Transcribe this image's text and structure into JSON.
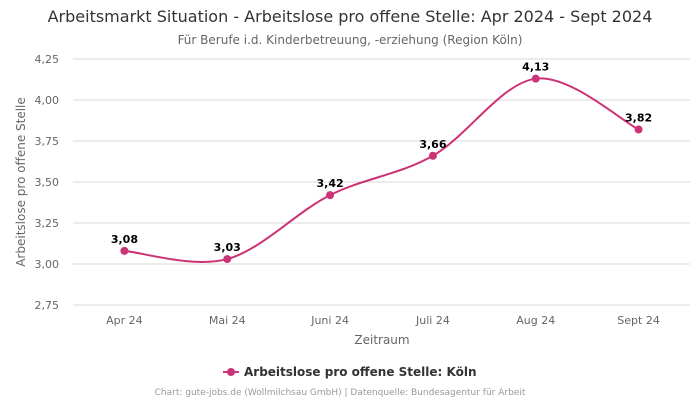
{
  "chart_data": {
    "type": "line",
    "title": "Arbeitsmarkt Situation - Arbeitslose pro offene Stelle: Apr 2024 - Sept 2024",
    "subtitle": "Für Berufe i.d. Kinderbetreuung, -erziehung (Region Köln)",
    "xlabel": "Zeitraum",
    "ylabel": "Arbeitslose pro offene Stelle",
    "categories": [
      "Apr 24",
      "Mai 24",
      "Juni 24",
      "Juli 24",
      "Aug 24",
      "Sept 24"
    ],
    "y_ticks": [
      "2,75",
      "3,00",
      "3,25",
      "3,50",
      "3,75",
      "4,00",
      "4,25"
    ],
    "ylim": [
      2.75,
      4.25
    ],
    "grid": true,
    "legend_position": "bottom-center",
    "series": [
      {
        "name": "Arbeitslose pro offene Stelle: Köln",
        "values": [
          3.08,
          3.03,
          3.42,
          3.66,
          4.13,
          3.82
        ],
        "labels": [
          "3,08",
          "3,03",
          "3,42",
          "3,66",
          "4,13",
          "3,82"
        ],
        "color": "#cc3377"
      }
    ],
    "credits": "Chart: gute-jobs.de (Wollmilchsau GmbH) | Datenquelle: Bundesagentur für Arbeit"
  }
}
